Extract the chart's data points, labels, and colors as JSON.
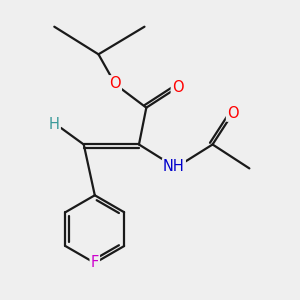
{
  "bg_color": "#efefef",
  "bond_color": "#1a1a1a",
  "bond_width": 1.6,
  "dbo": 0.06,
  "atom_colors": {
    "O": "#ff0000",
    "N": "#0000cc",
    "F": "#cc00cc",
    "H": "#3a9a9a",
    "C": "#1a1a1a"
  },
  "font_size": 10.5
}
